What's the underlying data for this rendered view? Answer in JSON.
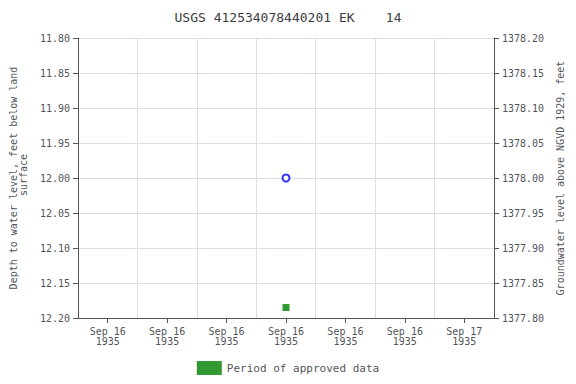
{
  "chart_data": {
    "type": "scatter",
    "title": "USGS 412534078440201 EK    14",
    "ylabel": "Depth to water level, feet below land\n surface",
    "y2label": "Groundwater level above NGVD 1929, feet",
    "categories": [
      "Sep 16\n1935",
      "Sep 16\n1935",
      "Sep 16\n1935",
      "Sep 16\n1935",
      "Sep 16\n1935",
      "Sep 16\n1935",
      "Sep 17\n1935"
    ],
    "series": [
      {
        "color": "blue",
        "marker": "emptyCircle",
        "values": [
          null,
          null,
          null,
          12.0,
          null,
          null,
          null
        ]
      },
      {
        "name": "Period of approved data",
        "color": "#008000",
        "marker": "rect",
        "values": [
          null,
          null,
          null,
          12.185,
          null,
          null,
          null
        ]
      }
    ],
    "ylim": [
      12.2,
      11.8
    ],
    "yticks": [
      {
        "value": 11.8,
        "label": "11.80"
      },
      {
        "value": 11.85,
        "label": "11.85"
      },
      {
        "value": 11.9,
        "label": "11.90"
      },
      {
        "value": 11.95,
        "label": "11.95"
      },
      {
        "value": 12.0,
        "label": "12.00"
      },
      {
        "value": 12.05,
        "label": "12.05"
      },
      {
        "value": 12.1,
        "label": "12.10"
      },
      {
        "value": 12.15,
        "label": "12.15"
      },
      {
        "value": 12.2,
        "label": "12.20"
      }
    ],
    "y2lim": [
      1377.8,
      1378.2
    ],
    "y2ticks": [
      {
        "value": 1378.2,
        "label": "1378.20"
      },
      {
        "value": 1378.15,
        "label": "1378.15"
      },
      {
        "value": 1378.1,
        "label": "1378.10"
      },
      {
        "value": 1378.05,
        "label": "1378.05"
      },
      {
        "value": 1378.0,
        "label": "1378.00"
      },
      {
        "value": 1377.95,
        "label": "1377.95"
      },
      {
        "value": 1377.9,
        "label": "1377.90"
      },
      {
        "value": 1377.85,
        "label": "1377.85"
      },
      {
        "value": 1377.8,
        "label": "1377.80"
      }
    ],
    "grid": true,
    "legend": "bottom"
  }
}
